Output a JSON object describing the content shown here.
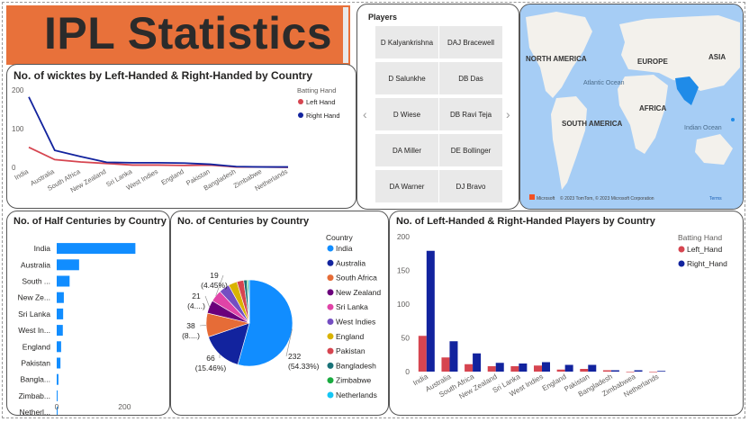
{
  "banner": {
    "title": "IPL Statistics"
  },
  "players_slicer": {
    "title": "Players",
    "players": [
      "D Kalyankrishna",
      "DAJ Bracewell",
      "D Salunkhe",
      "DB Das",
      "D Wiese",
      "DB Ravi Teja",
      "DA Miller",
      "DE Bollinger",
      "DA Warner",
      "DJ Bravo"
    ]
  },
  "map": {
    "labels": [
      "NORTH AMERICA",
      "EUROPE",
      "ASIA",
      "Atlantic Ocean",
      "AFRICA",
      "SOUTH AMERICA",
      "Indian Ocean"
    ],
    "attribution": "© 2023 TomTom, © 2023 Microsoft Corporation",
    "terms": "Terms",
    "brand": "Microsoft"
  },
  "colors": {
    "left": "#D64550",
    "right": "#12239E",
    "pie": [
      "#118DFF",
      "#12239E",
      "#E66C37",
      "#6B007B",
      "#E044A7",
      "#744EC2",
      "#D9B300",
      "#D64550",
      "#197278",
      "#1AAB40",
      "#15C6F4"
    ]
  },
  "chart_data": [
    {
      "type": "line",
      "title": "No. of wicktes by Left-Handed & Right-Handed by Country",
      "categories": [
        "India",
        "Australia",
        "South Africa",
        "New Zealand",
        "Sri Lanka",
        "West Indies",
        "England",
        "Pakistan",
        "Bangladesh",
        "Zimbabwe",
        "Netherlands"
      ],
      "legend_title": "Batting Hand",
      "series": [
        {
          "name": "Left Hand",
          "values": [
            52,
            20,
            14,
            10,
            6,
            6,
            5,
            6,
            1,
            1,
            0
          ]
        },
        {
          "name": "Right Hand",
          "values": [
            182,
            44,
            28,
            13,
            12,
            12,
            11,
            8,
            2,
            1,
            1
          ]
        }
      ],
      "yticks": [
        0,
        100,
        200
      ],
      "ylim": [
        0,
        200
      ],
      "legend_position": "right"
    },
    {
      "type": "bar",
      "orientation": "horizontal",
      "title": "No. of Half Centuries by Country",
      "categories": [
        "India",
        "Australia",
        "South ...",
        "New Ze...",
        "Sri Lanka",
        "West In...",
        "England",
        "Pakistan",
        "Bangla...",
        "Zimbab...",
        "Netherl..."
      ],
      "values": [
        232,
        66,
        38,
        21,
        19,
        18,
        13,
        11,
        5,
        2,
        1
      ],
      "xticks": [
        0,
        200
      ],
      "xlim": [
        0,
        300
      ]
    },
    {
      "type": "pie",
      "title": "No. of Centuries by Country",
      "legend_title": "Country",
      "categories": [
        "India",
        "Australia",
        "South Africa",
        "New Zealand",
        "Sri Lanka",
        "West Indies",
        "England",
        "Pakistan",
        "Bangladesh",
        "Zimbabwe",
        "Netherlands"
      ],
      "values": [
        232,
        66,
        38,
        21,
        19,
        17,
        14,
        11,
        5,
        2,
        2
      ],
      "labels": [
        {
          "value": "232",
          "pct": "(54.33%)"
        },
        {
          "value": "66",
          "pct": "(15.46%)"
        },
        {
          "value": "38",
          "pct": "(8....)"
        },
        {
          "value": "21",
          "pct": "(4....)"
        },
        {
          "value": "19",
          "pct": "(4.45%)"
        }
      ],
      "legend_position": "right"
    },
    {
      "type": "bar",
      "title": "No. of Left-Handed & Right-Handed Players by Country",
      "categories": [
        "India",
        "Australia",
        "South Africa",
        "New Zealand",
        "Sri Lanka",
        "West Indies",
        "England",
        "Pakistan",
        "Bangladesh",
        "Zimbabwea",
        "Netherlands"
      ],
      "legend_title": "Batting Hand",
      "series": [
        {
          "name": "Left_Hand",
          "values": [
            53,
            21,
            11,
            8,
            8,
            9,
            3,
            4,
            2,
            0,
            0
          ]
        },
        {
          "name": "Right_Hand",
          "values": [
            179,
            45,
            27,
            13,
            12,
            14,
            10,
            10,
            2,
            2,
            1
          ]
        }
      ],
      "yticks": [
        0,
        50,
        100,
        150,
        200
      ],
      "ylim": [
        0,
        200
      ],
      "legend_position": "right"
    }
  ]
}
